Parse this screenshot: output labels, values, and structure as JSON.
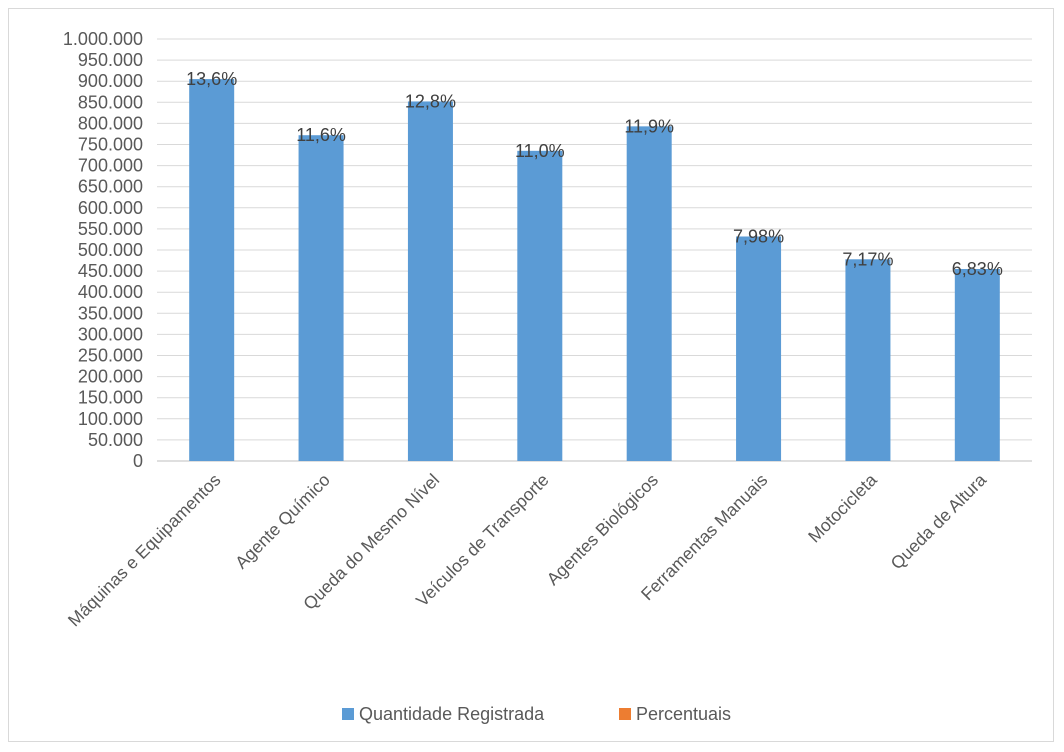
{
  "chart_data": {
    "type": "bar",
    "categories": [
      "Máquinas e Equipamentos",
      "Agente Químico",
      "Queda do Mesmo Nível",
      "Veículos de Transporte",
      "Agentes Biológicos",
      "Ferramentas Manuais",
      "Motocicleta",
      "Queda de Altura"
    ],
    "series": [
      {
        "name": "Quantidade Registrada",
        "color": "#5b9bd5",
        "values": [
          905000,
          772000,
          852000,
          735000,
          793000,
          532000,
          478000,
          455000
        ]
      },
      {
        "name": "Percentuais",
        "color": "#ed7d31",
        "values": [
          13.6,
          11.6,
          12.8,
          11.0,
          11.9,
          7.98,
          7.17,
          6.83
        ],
        "display": [
          "13,6%",
          "11,6%",
          "12,8%",
          "11,0%",
          "11,9%",
          "7,98%",
          "7,17%",
          "6,83%"
        ]
      }
    ],
    "data_labels": [
      "13,6%",
      "11,6%",
      "12,8%",
      "11,0%",
      "11,9%",
      "7,98%",
      "7,17%",
      "6,83%"
    ],
    "y_ticks": [
      "0",
      "50.000",
      "100.000",
      "150.000",
      "200.000",
      "250.000",
      "300.000",
      "350.000",
      "400.000",
      "450.000",
      "500.000",
      "550.000",
      "600.000",
      "650.000",
      "700.000",
      "750.000",
      "800.000",
      "850.000",
      "900.000",
      "950.000",
      "1.000.000"
    ],
    "ylim": [
      0,
      1000000
    ],
    "title": "",
    "xlabel": "",
    "ylabel": "",
    "grid": true,
    "legend_position": "bottom"
  }
}
